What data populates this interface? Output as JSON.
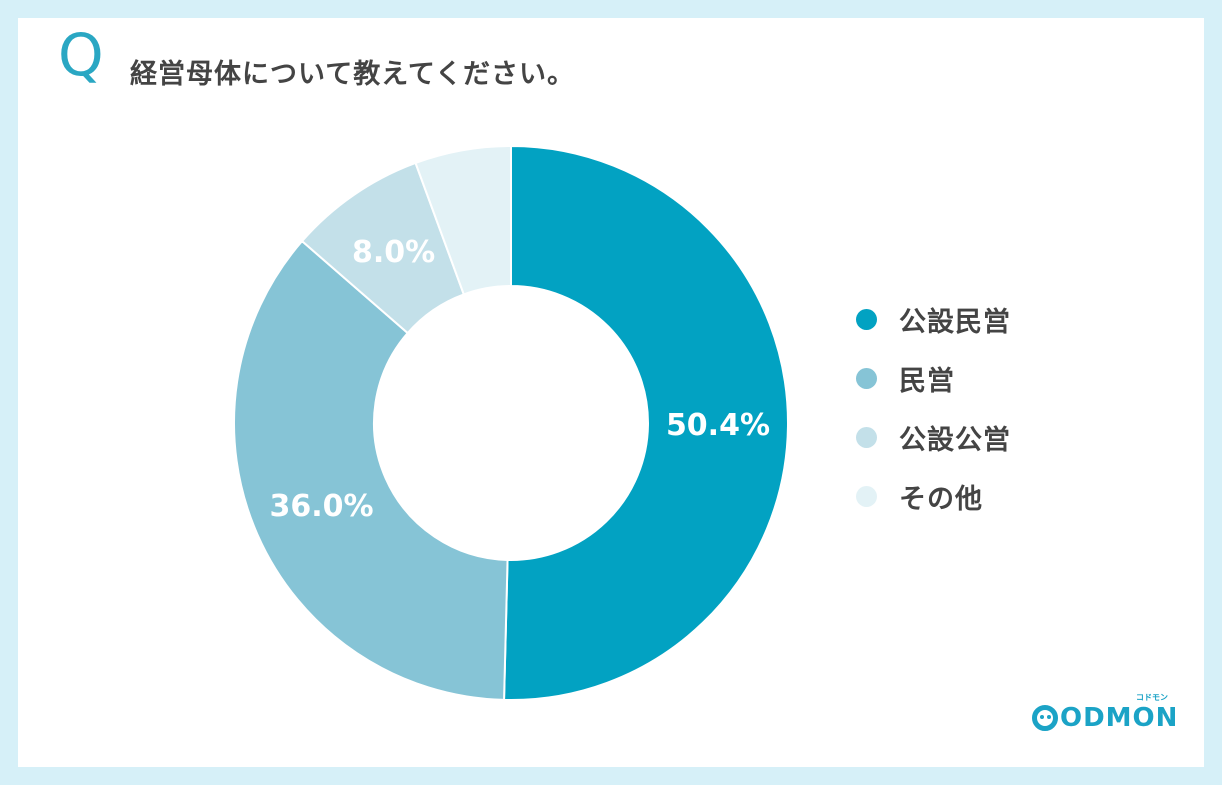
{
  "header": {
    "q_letter": "Q",
    "question": "経営母体について教えてください。"
  },
  "chart_data": {
    "type": "pie",
    "donut": true,
    "categories": [
      "公設民営",
      "民営",
      "公設公営",
      "その他"
    ],
    "values": [
      50.4,
      36.0,
      8.0,
      5.6
    ],
    "data_labels": [
      "50.4%",
      "36.0%",
      "8.0%",
      ""
    ],
    "colors": [
      "#02a2c2",
      "#86c4d6",
      "#c3e0e9",
      "#e3f2f6"
    ],
    "legend_position": "right"
  },
  "legend": {
    "items": [
      {
        "label": "公設民営",
        "color": "#02a2c2"
      },
      {
        "label": "民営",
        "color": "#86c4d6"
      },
      {
        "label": "公設公営",
        "color": "#c3e0e9"
      },
      {
        "label": "その他",
        "color": "#e3f2f6"
      }
    ]
  },
  "logo": {
    "wordmark": "ODMON",
    "tagline": "コドモン",
    "color": "#1ba3c6"
  }
}
